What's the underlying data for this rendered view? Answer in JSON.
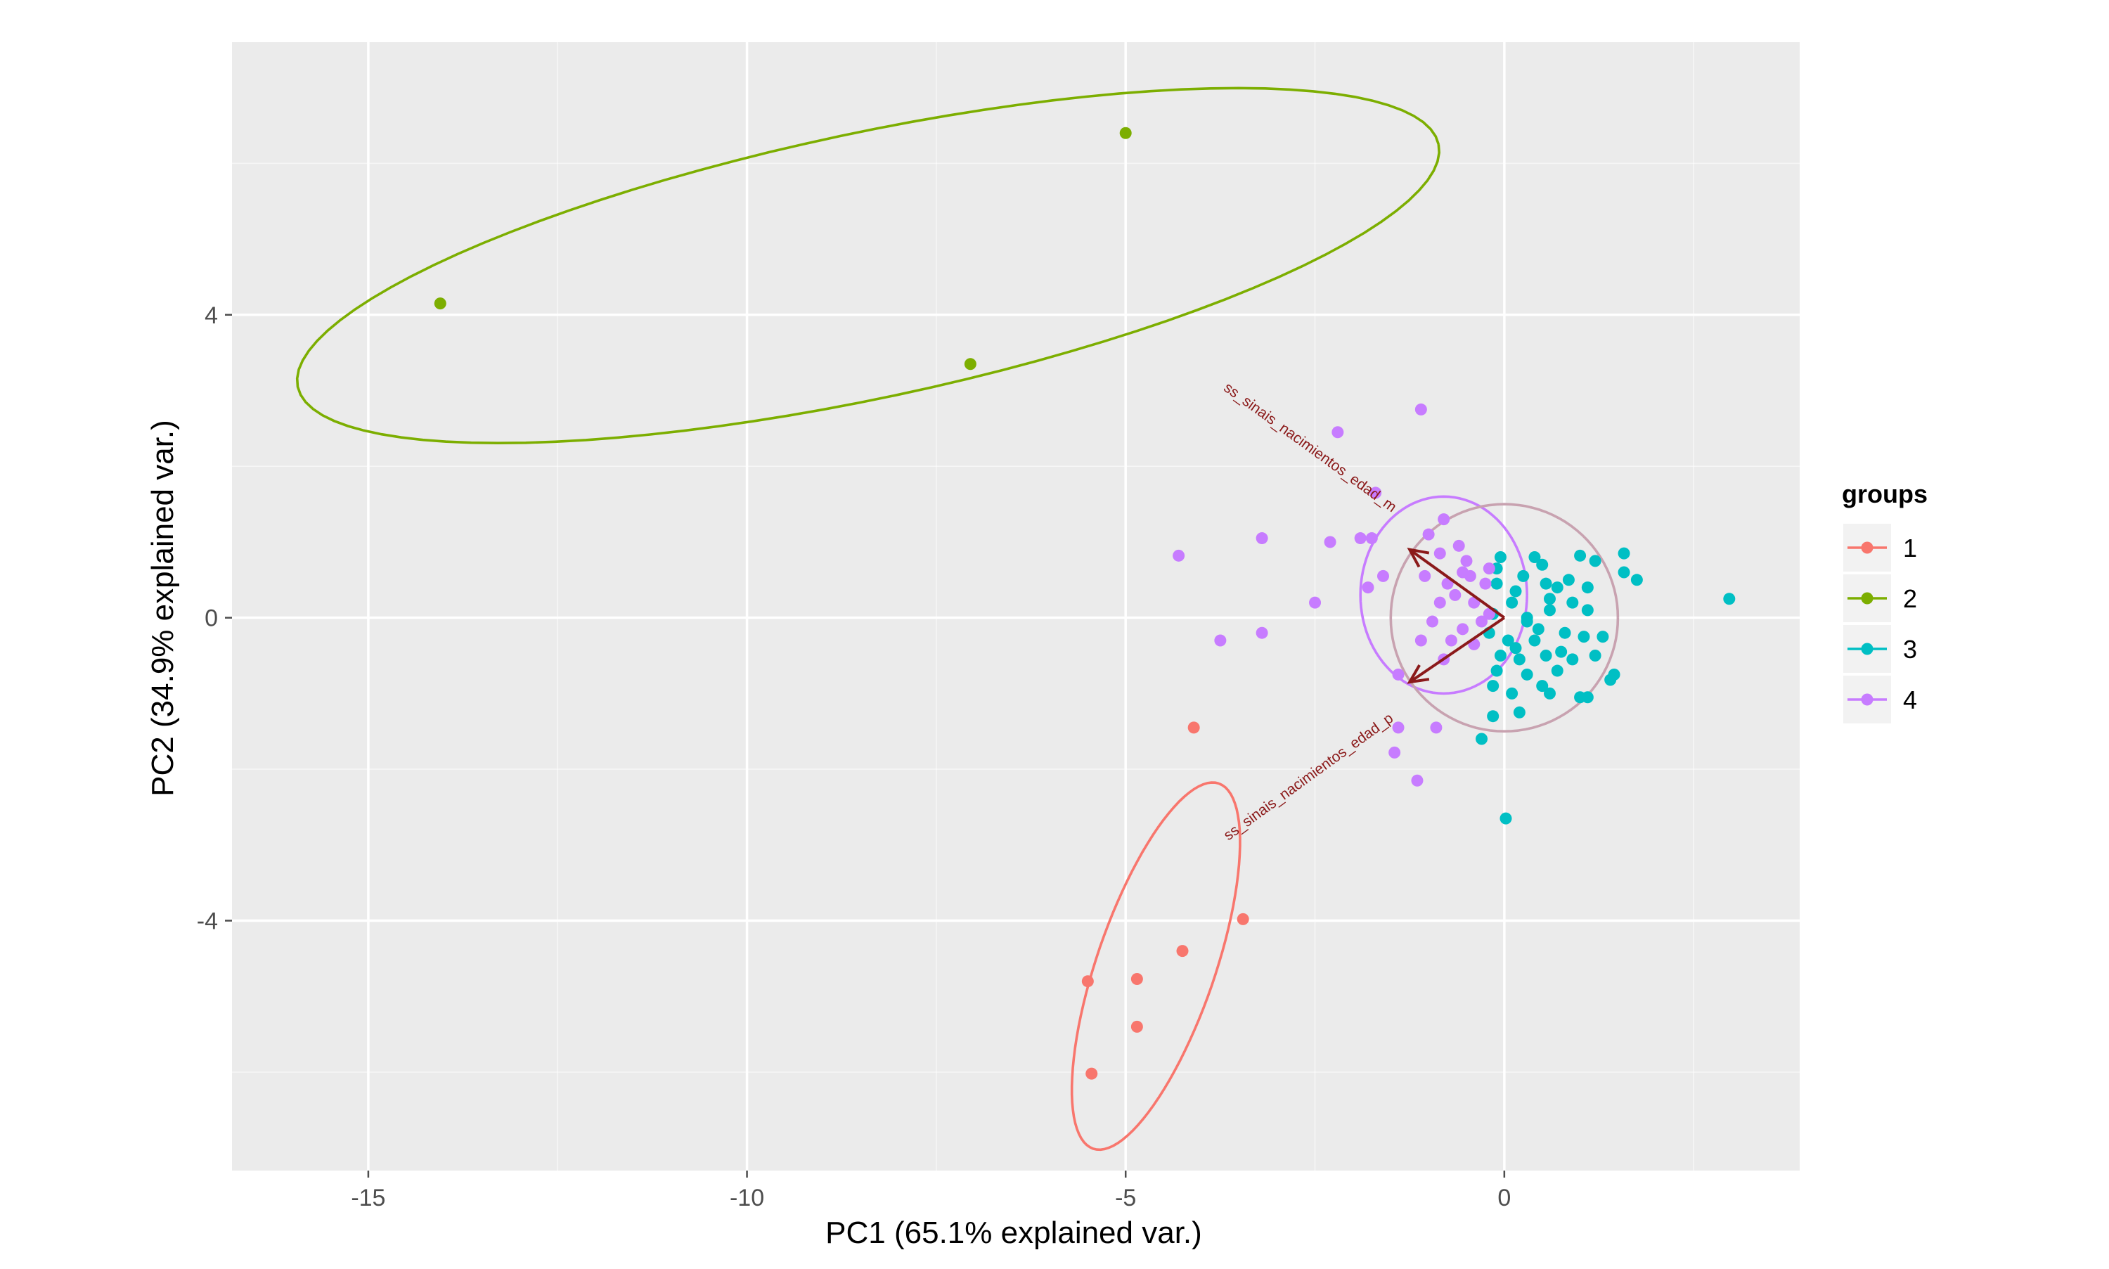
{
  "chart_data": {
    "type": "scatter",
    "xlabel": "PC1 (65.1% explained var.)",
    "ylabel": "PC2 (34.9% explained var.)",
    "xlim": [
      -16.8,
      3.9
    ],
    "ylim": [
      -7.3,
      7.6
    ],
    "x_ticks": [
      -15,
      -10,
      -5,
      0
    ],
    "x_tick_labels": [
      "-15",
      "-10",
      "-5",
      "0"
    ],
    "y_ticks": [
      -4,
      0,
      4
    ],
    "y_tick_labels": [
      "-4",
      "0",
      "4"
    ],
    "grid": true,
    "legend": {
      "title": "groups",
      "placement": "right",
      "entries": [
        "1",
        "2",
        "3",
        "4"
      ]
    },
    "colors": {
      "1": "#F8766D",
      "2": "#7CAE00",
      "3": "#00BFC4",
      "4": "#C77CFF",
      "arrow": "#8B1A1A",
      "circle": "#C8A2B0",
      "panel": "#EBEBEB",
      "grid": "#FFFFFF"
    },
    "series": [
      {
        "name": "1",
        "points": [
          [
            -4.1,
            -1.45
          ],
          [
            -3.45,
            -3.98
          ],
          [
            -4.25,
            -4.4
          ],
          [
            -4.85,
            -4.77
          ],
          [
            -5.5,
            -4.8
          ],
          [
            -4.85,
            -5.4
          ],
          [
            -5.45,
            -6.02
          ]
        ]
      },
      {
        "name": "2",
        "points": [
          [
            -14.05,
            4.15
          ],
          [
            -5.0,
            6.4
          ],
          [
            -7.05,
            3.35
          ]
        ]
      },
      {
        "name": "3",
        "points": [
          [
            2.97,
            0.25
          ],
          [
            1.58,
            0.85
          ],
          [
            1.58,
            0.6
          ],
          [
            1.75,
            0.5
          ],
          [
            1.2,
            0.75
          ],
          [
            0.02,
            -2.65
          ],
          [
            -0.3,
            -1.6
          ],
          [
            -0.15,
            -1.3
          ],
          [
            0.2,
            -1.25
          ],
          [
            1.1,
            -1.05
          ],
          [
            1.0,
            -1.05
          ],
          [
            1.45,
            -0.75
          ],
          [
            1.4,
            -0.82
          ],
          [
            0.6,
            -1.0
          ],
          [
            0.3,
            -0.75
          ],
          [
            -0.1,
            -0.7
          ],
          [
            1.0,
            0.82
          ],
          [
            0.5,
            0.7
          ],
          [
            0.4,
            -0.3
          ],
          [
            0.1,
            0.2
          ],
          [
            -0.1,
            0.45
          ],
          [
            0.25,
            0.55
          ],
          [
            0.7,
            0.4
          ],
          [
            0.8,
            -0.2
          ],
          [
            1.1,
            0.1
          ],
          [
            0.55,
            -0.5
          ],
          [
            0.05,
            -0.3
          ],
          [
            -0.15,
            0.05
          ],
          [
            0.3,
            0.0
          ],
          [
            0.9,
            -0.55
          ],
          [
            1.2,
            -0.5
          ],
          [
            0.6,
            0.25
          ],
          [
            -0.05,
            -0.5
          ],
          [
            0.45,
            -0.15
          ],
          [
            0.7,
            -0.7
          ],
          [
            0.15,
            0.35
          ],
          [
            0.85,
            0.5
          ],
          [
            -0.1,
            0.65
          ],
          [
            0.4,
            0.8
          ],
          [
            1.05,
            -0.25
          ],
          [
            1.3,
            -0.25
          ],
          [
            0.2,
            -0.55
          ],
          [
            0.6,
            0.1
          ],
          [
            0.3,
            -0.05
          ],
          [
            0.9,
            0.2
          ],
          [
            -0.2,
            -0.2
          ],
          [
            0.55,
            0.45
          ],
          [
            0.15,
            -0.4
          ],
          [
            1.1,
            0.4
          ],
          [
            0.75,
            -0.45
          ],
          [
            -0.15,
            -0.9
          ],
          [
            0.1,
            -1.0
          ],
          [
            0.5,
            -0.9
          ],
          [
            -0.05,
            0.8
          ]
        ]
      },
      {
        "name": "4",
        "points": [
          [
            -1.1,
            2.75
          ],
          [
            -2.2,
            2.45
          ],
          [
            -1.7,
            1.65
          ],
          [
            -1.75,
            1.05
          ],
          [
            -1.9,
            1.05
          ],
          [
            -2.3,
            1.0
          ],
          [
            -3.2,
            1.05
          ],
          [
            -4.3,
            0.82
          ],
          [
            -1.6,
            0.55
          ],
          [
            -1.8,
            0.4
          ],
          [
            -2.5,
            0.2
          ],
          [
            -3.2,
            -0.2
          ],
          [
            -3.75,
            -0.3
          ],
          [
            -1.4,
            -0.75
          ],
          [
            -1.4,
            -1.45
          ],
          [
            -1.45,
            -1.78
          ],
          [
            -1.15,
            -2.15
          ],
          [
            -0.9,
            -1.45
          ],
          [
            -0.8,
            1.3
          ],
          [
            -1.0,
            1.1
          ],
          [
            -0.6,
            0.95
          ],
          [
            -0.5,
            0.75
          ],
          [
            -1.05,
            0.55
          ],
          [
            -0.75,
            0.45
          ],
          [
            -0.85,
            0.2
          ],
          [
            -1.1,
            -0.3
          ],
          [
            -0.95,
            -0.05
          ],
          [
            -0.65,
            0.3
          ],
          [
            -0.4,
            0.2
          ],
          [
            -0.55,
            -0.15
          ],
          [
            -0.8,
            -0.55
          ],
          [
            -0.4,
            -0.35
          ],
          [
            -0.25,
            0.45
          ],
          [
            -0.2,
            0.05
          ],
          [
            -0.3,
            -0.05
          ],
          [
            -0.55,
            0.6
          ],
          [
            -0.85,
            0.85
          ],
          [
            -0.45,
            0.55
          ],
          [
            -0.7,
            -0.3
          ],
          [
            -0.2,
            0.65
          ]
        ]
      }
    ],
    "ellipses": [
      {
        "group": "1",
        "cx": -4.6,
        "cy": -4.6,
        "rx": 2.55,
        "ry": 0.78,
        "angle_deg": 71
      },
      {
        "group": "2",
        "cx": -8.4,
        "cy": 4.65,
        "rx": 7.7,
        "ry": 1.75,
        "angle_deg": 12
      },
      {
        "group": "4",
        "cx": -0.8,
        "cy": 0.3,
        "rx": 1.1,
        "ry": 1.3,
        "angle_deg": 0
      },
      {
        "group": "unit",
        "cx": 0.0,
        "cy": 0.0,
        "rx": 1.5,
        "ry": 1.5,
        "angle_deg": 0
      }
    ],
    "arrows": [
      {
        "label": "ss_sinais_nacimientos_edad_m",
        "x": -1.25,
        "y": 0.9,
        "label_x": -2.6,
        "label_y": 2.2,
        "label_angle": 36
      },
      {
        "label": "ss_sinais_nacimientos_edad_p",
        "x": -1.25,
        "y": -0.85,
        "label_x": -2.55,
        "label_y": -2.15,
        "label_angle": -36
      }
    ]
  }
}
